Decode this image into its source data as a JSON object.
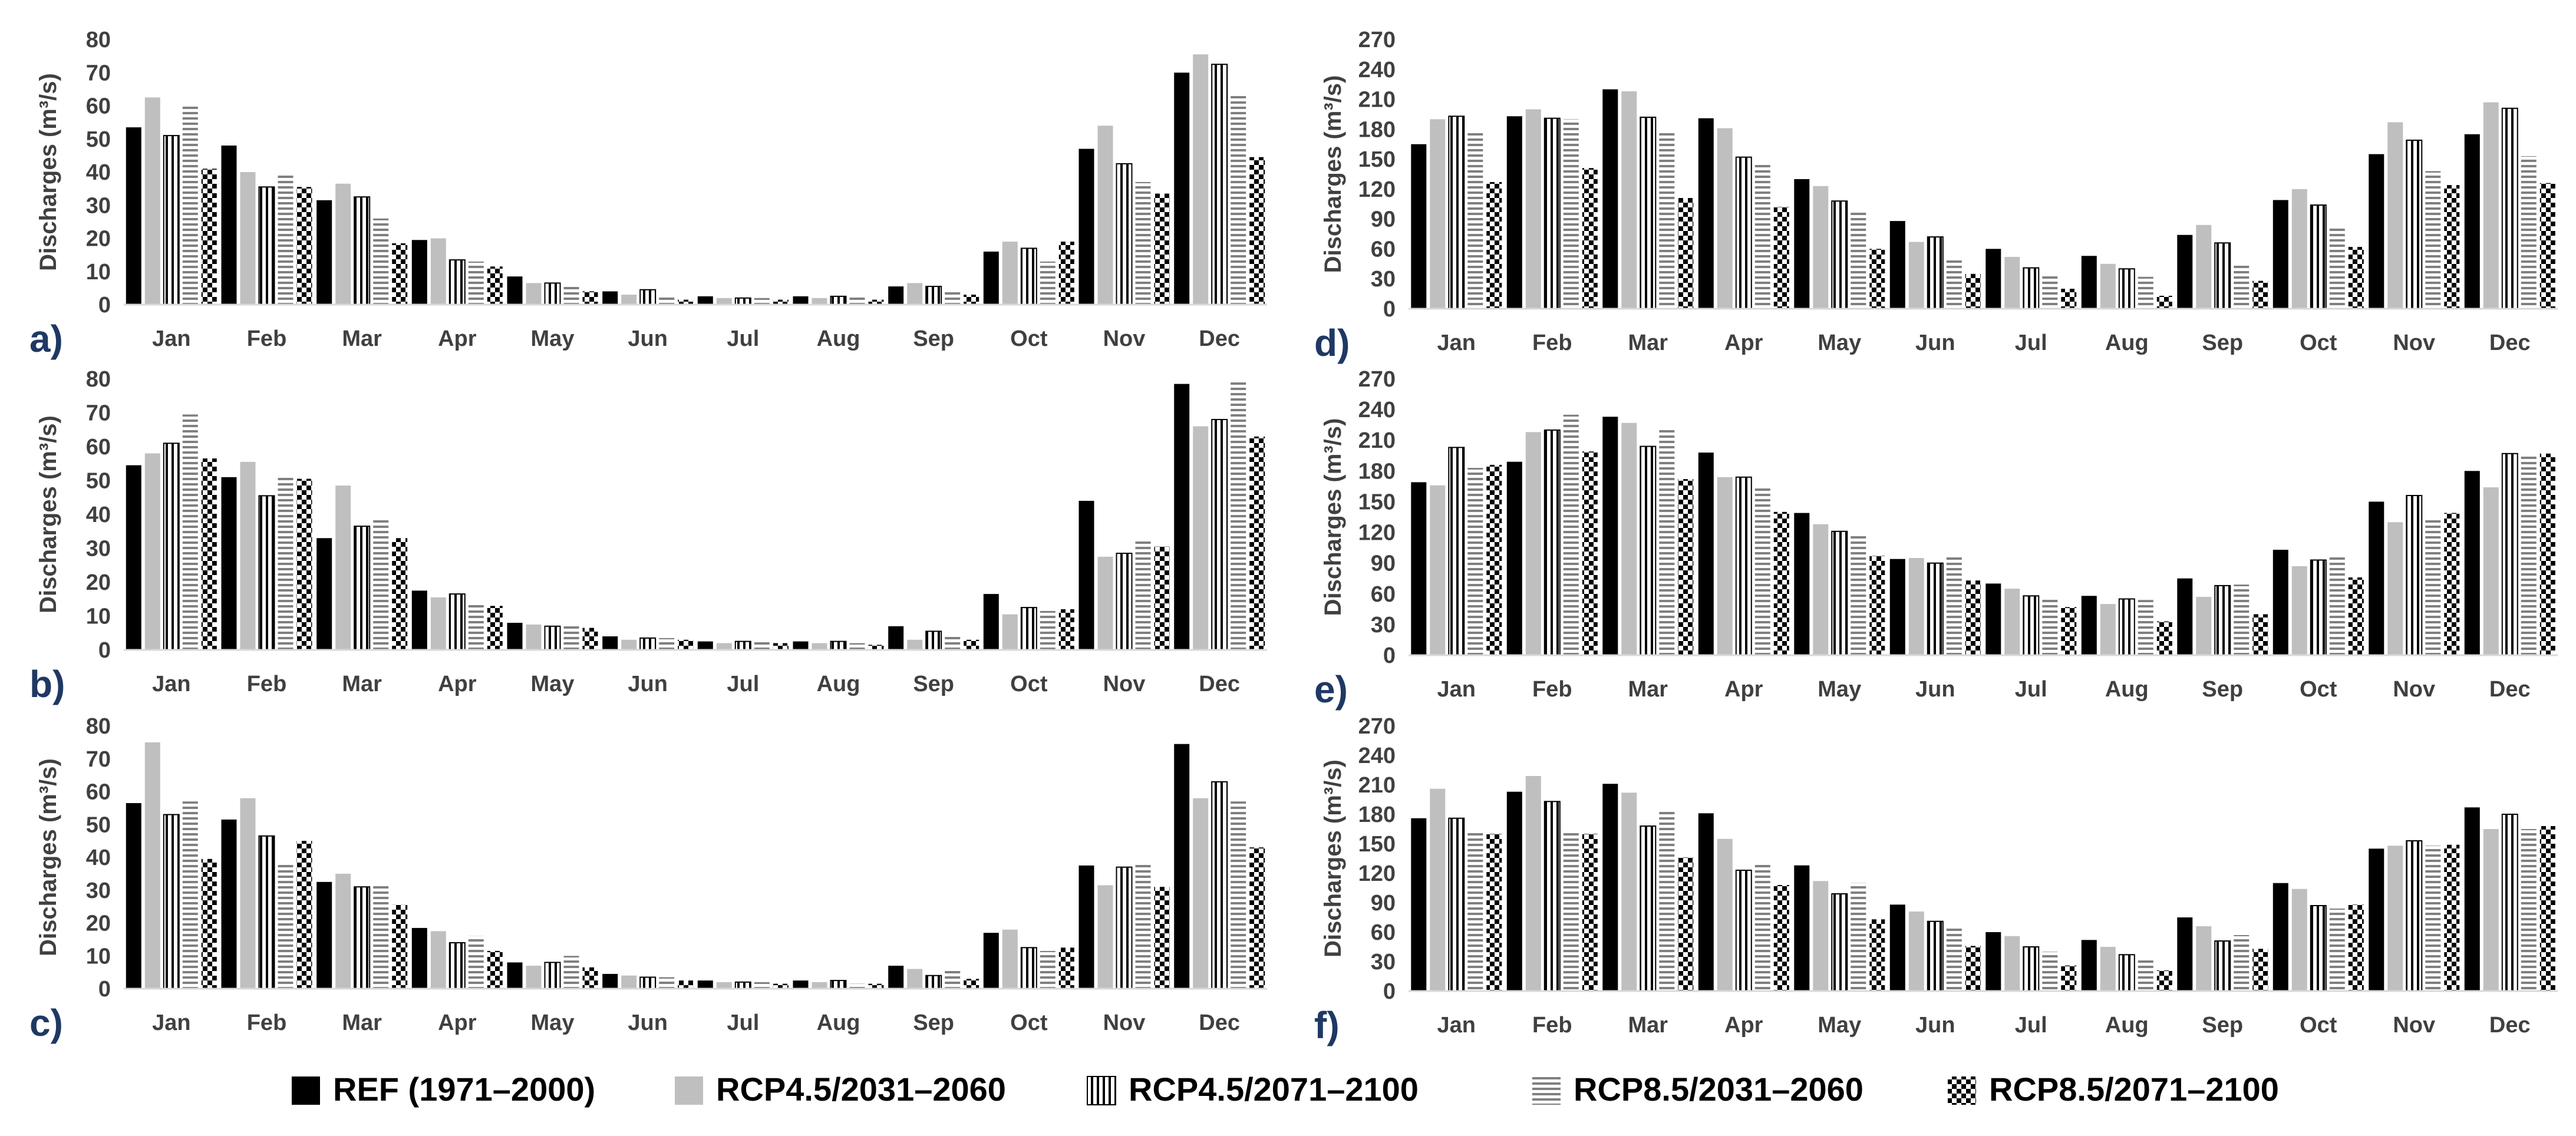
{
  "palette": {
    "ref": "#000000",
    "rcp45_mid": "#bfbfbf",
    "axis": "#d9d9d9",
    "text": "#404040",
    "panel_label": "#1f3864"
  },
  "legend": [
    {
      "key": "ref",
      "label": "REF (1971–2000)",
      "pattern": "solid-black"
    },
    {
      "key": "rcp45_mid",
      "label": "RCP4.5/2031–2060",
      "pattern": "solid-gray"
    },
    {
      "key": "rcp45_end",
      "label": "RCP4.5/2071–2100",
      "pattern": "vertical-stripes"
    },
    {
      "key": "rcp85_mid",
      "label": "RCP8.5/2031–2060",
      "pattern": "horizontal-stripes"
    },
    {
      "key": "rcp85_end",
      "label": "RCP8.5/2071–2100",
      "pattern": "checkerboard"
    }
  ],
  "chart_data": [
    {
      "panel": "a)",
      "type": "bar",
      "ylabel": "Discharges (m³/s)",
      "ylim": [
        0,
        80
      ],
      "yticks": [
        0,
        10,
        20,
        30,
        40,
        50,
        60,
        70,
        80
      ],
      "categories": [
        "Jan",
        "Feb",
        "Mar",
        "Apr",
        "May",
        "Jun",
        "Jul",
        "Aug",
        "Sep",
        "Oct",
        "Nov",
        "Dec"
      ],
      "series": [
        {
          "name": "REF (1971–2000)",
          "key": "ref",
          "values": [
            53.5,
            48,
            31.5,
            19.5,
            8.5,
            4,
            2.5,
            2.5,
            5.5,
            16,
            47,
            70
          ]
        },
        {
          "name": "RCP4.5/2031–2060",
          "key": "rcp45_mid",
          "values": [
            62.5,
            40,
            36.5,
            20,
            6.5,
            3,
            2,
            2,
            6.5,
            19,
            54,
            75.5
          ]
        },
        {
          "name": "RCP4.5/2071–2100",
          "key": "rcp45_end",
          "values": [
            51,
            35.5,
            32.5,
            13.5,
            6.5,
            4.5,
            2,
            2.5,
            5.5,
            17,
            42.5,
            72.5
          ]
        },
        {
          "name": "RCP8.5/2031–2060",
          "key": "rcp85_mid",
          "values": [
            60.5,
            39,
            26,
            13,
            6,
            2.5,
            2,
            2.5,
            4,
            13,
            37,
            63
          ]
        },
        {
          "name": "RCP8.5/2071–2100",
          "key": "rcp85_end",
          "values": [
            41,
            35.5,
            18.5,
            11.5,
            4,
            1.5,
            1.5,
            1.5,
            3,
            19,
            33.5,
            44.5
          ]
        }
      ]
    },
    {
      "panel": "b)",
      "type": "bar",
      "ylabel": "Discharges (m³/s)",
      "ylim": [
        0,
        80
      ],
      "yticks": [
        0,
        10,
        20,
        30,
        40,
        50,
        60,
        70,
        80
      ],
      "categories": [
        "Jan",
        "Feb",
        "Mar",
        "Apr",
        "May",
        "Jun",
        "Jul",
        "Aug",
        "Sep",
        "Oct",
        "Nov",
        "Dec"
      ],
      "series": [
        {
          "name": "REF (1971–2000)",
          "key": "ref",
          "values": [
            54.5,
            51,
            33,
            17.5,
            8,
            4,
            2.5,
            2.5,
            7,
            16.5,
            44,
            78.5
          ]
        },
        {
          "name": "RCP4.5/2031–2060",
          "key": "rcp45_mid",
          "values": [
            58,
            55.5,
            48.5,
            15.5,
            7.5,
            3,
            2,
            2,
            3,
            10.5,
            27.5,
            66
          ]
        },
        {
          "name": "RCP4.5/2071–2100",
          "key": "rcp45_end",
          "values": [
            61,
            45.5,
            36.5,
            16.5,
            7,
            3.5,
            2.5,
            2.5,
            5.5,
            12.5,
            28.5,
            68
          ]
        },
        {
          "name": "RCP8.5/2031–2060",
          "key": "rcp85_mid",
          "values": [
            69.5,
            51,
            39,
            14,
            7,
            3.5,
            3,
            2,
            4,
            11.5,
            32.5,
            79.5
          ]
        },
        {
          "name": "RCP8.5/2071–2100",
          "key": "rcp85_end",
          "values": [
            56.5,
            50.5,
            33,
            13,
            6.5,
            3,
            2,
            1.5,
            3,
            12,
            30.5,
            63
          ]
        }
      ]
    },
    {
      "panel": "c)",
      "type": "bar",
      "ylabel": "Discharges (m³/s)",
      "ylim": [
        0,
        80
      ],
      "yticks": [
        0,
        10,
        20,
        30,
        40,
        50,
        60,
        70,
        80
      ],
      "categories": [
        "Jan",
        "Feb",
        "Mar",
        "Apr",
        "May",
        "Jun",
        "Jul",
        "Aug",
        "Sep",
        "Oct",
        "Nov",
        "Dec"
      ],
      "series": [
        {
          "name": "REF (1971–2000)",
          "key": "ref",
          "values": [
            56.5,
            51.5,
            32.5,
            18.5,
            8,
            4.5,
            2.5,
            2.5,
            7,
            17,
            37.5,
            74.5
          ]
        },
        {
          "name": "RCP4.5/2031–2060",
          "key": "rcp45_mid",
          "values": [
            75,
            58,
            35,
            17.5,
            7,
            4,
            2,
            2,
            6,
            18,
            31.5,
            58
          ]
        },
        {
          "name": "RCP4.5/2071–2100",
          "key": "rcp45_end",
          "values": [
            53,
            46.5,
            31,
            14,
            8,
            3.5,
            2,
            2.5,
            4,
            12.5,
            37,
            63
          ]
        },
        {
          "name": "RCP8.5/2031–2060",
          "key": "rcp85_mid",
          "values": [
            57,
            38,
            31.5,
            16,
            10,
            3.5,
            2,
            1.5,
            6,
            11.5,
            38,
            57
          ]
        },
        {
          "name": "RCP8.5/2071–2100",
          "key": "rcp85_end",
          "values": [
            39.5,
            45,
            25.5,
            11.5,
            6.5,
            2.5,
            1.5,
            1.5,
            3,
            12.5,
            31,
            43
          ]
        }
      ]
    },
    {
      "panel": "d)",
      "type": "bar",
      "ylabel": "Discharges (m³/s)",
      "ylim": [
        0,
        270
      ],
      "yticks": [
        0,
        30,
        60,
        90,
        120,
        150,
        180,
        210,
        240,
        270
      ],
      "categories": [
        "Jan",
        "Feb",
        "Mar",
        "Apr",
        "May",
        "Jun",
        "Jul",
        "Aug",
        "Sep",
        "Oct",
        "Nov",
        "Dec"
      ],
      "series": [
        {
          "name": "REF (1971–2000)",
          "key": "ref",
          "values": [
            165,
            193,
            220,
            191,
            130,
            88,
            60,
            53,
            74,
            109,
            155,
            175
          ]
        },
        {
          "name": "RCP4.5/2031–2060",
          "key": "rcp45_mid",
          "values": [
            190,
            200,
            218,
            181,
            123,
            67,
            52,
            45,
            84,
            120,
            187,
            207
          ]
        },
        {
          "name": "RCP4.5/2071–2100",
          "key": "rcp45_end",
          "values": [
            193,
            191,
            192,
            152,
            108,
            72,
            41,
            40,
            66,
            104,
            169,
            201
          ]
        },
        {
          "name": "RCP8.5/2031–2060",
          "key": "rcp85_mid",
          "values": [
            177,
            190,
            177,
            145,
            97,
            50,
            35,
            32,
            45,
            83,
            138,
            153
          ]
        },
        {
          "name": "RCP8.5/2071–2100",
          "key": "rcp85_end",
          "values": [
            127,
            141,
            111,
            102,
            60,
            35,
            20,
            13,
            28,
            62,
            124,
            126
          ]
        }
      ]
    },
    {
      "panel": "e)",
      "type": "bar",
      "ylabel": "Discharges (m³/s)",
      "ylim": [
        0,
        270
      ],
      "yticks": [
        0,
        30,
        60,
        90,
        120,
        150,
        180,
        210,
        240,
        270
      ],
      "categories": [
        "Jan",
        "Feb",
        "Mar",
        "Apr",
        "May",
        "Jun",
        "Jul",
        "Aug",
        "Sep",
        "Oct",
        "Nov",
        "Dec"
      ],
      "series": [
        {
          "name": "REF (1971–2000)",
          "key": "ref",
          "values": [
            169,
            189,
            233,
            198,
            139,
            94,
            70,
            58,
            75,
            103,
            150,
            180
          ]
        },
        {
          "name": "RCP4.5/2031–2060",
          "key": "rcp45_mid",
          "values": [
            166,
            218,
            227,
            174,
            128,
            95,
            65,
            50,
            57,
            87,
            130,
            164
          ]
        },
        {
          "name": "RCP4.5/2071–2100",
          "key": "rcp45_end",
          "values": [
            203,
            220,
            204,
            174,
            121,
            90,
            58,
            55,
            68,
            93,
            156,
            197
          ]
        },
        {
          "name": "RCP8.5/2031–2060",
          "key": "rcp85_mid",
          "values": [
            183,
            235,
            222,
            165,
            118,
            97,
            57,
            54,
            69,
            97,
            133,
            196
          ]
        },
        {
          "name": "RCP8.5/2071–2100",
          "key": "rcp85_end",
          "values": [
            186,
            199,
            172,
            140,
            97,
            73,
            47,
            33,
            40,
            76,
            139,
            197
          ]
        }
      ]
    },
    {
      "panel": "f)",
      "type": "bar",
      "ylabel": "Discharges (m³/s)",
      "ylim": [
        0,
        270
      ],
      "yticks": [
        0,
        30,
        60,
        90,
        120,
        150,
        180,
        210,
        240,
        270
      ],
      "categories": [
        "Jan",
        "Feb",
        "Mar",
        "Apr",
        "May",
        "Jun",
        "Jul",
        "Aug",
        "Sep",
        "Oct",
        "Nov",
        "Dec"
      ],
      "series": [
        {
          "name": "REF (1971–2000)",
          "key": "ref",
          "values": [
            176,
            203,
            211,
            181,
            128,
            88,
            60,
            52,
            75,
            110,
            145,
            187
          ]
        },
        {
          "name": "RCP4.5/2031–2060",
          "key": "rcp45_mid",
          "values": [
            206,
            219,
            202,
            155,
            112,
            81,
            56,
            45,
            66,
            104,
            148,
            165
          ]
        },
        {
          "name": "RCP4.5/2071–2100",
          "key": "rcp45_end",
          "values": [
            176,
            193,
            168,
            123,
            99,
            71,
            45,
            37,
            51,
            87,
            153,
            180
          ]
        },
        {
          "name": "RCP8.5/2031–2060",
          "key": "rcp85_mid",
          "values": [
            163,
            162,
            183,
            130,
            110,
            65,
            40,
            33,
            57,
            84,
            148,
            165
          ]
        },
        {
          "name": "RCP8.5/2071–2100",
          "key": "rcp85_end",
          "values": [
            160,
            160,
            136,
            108,
            73,
            46,
            26,
            21,
            43,
            88,
            149,
            168
          ]
        }
      ]
    }
  ]
}
